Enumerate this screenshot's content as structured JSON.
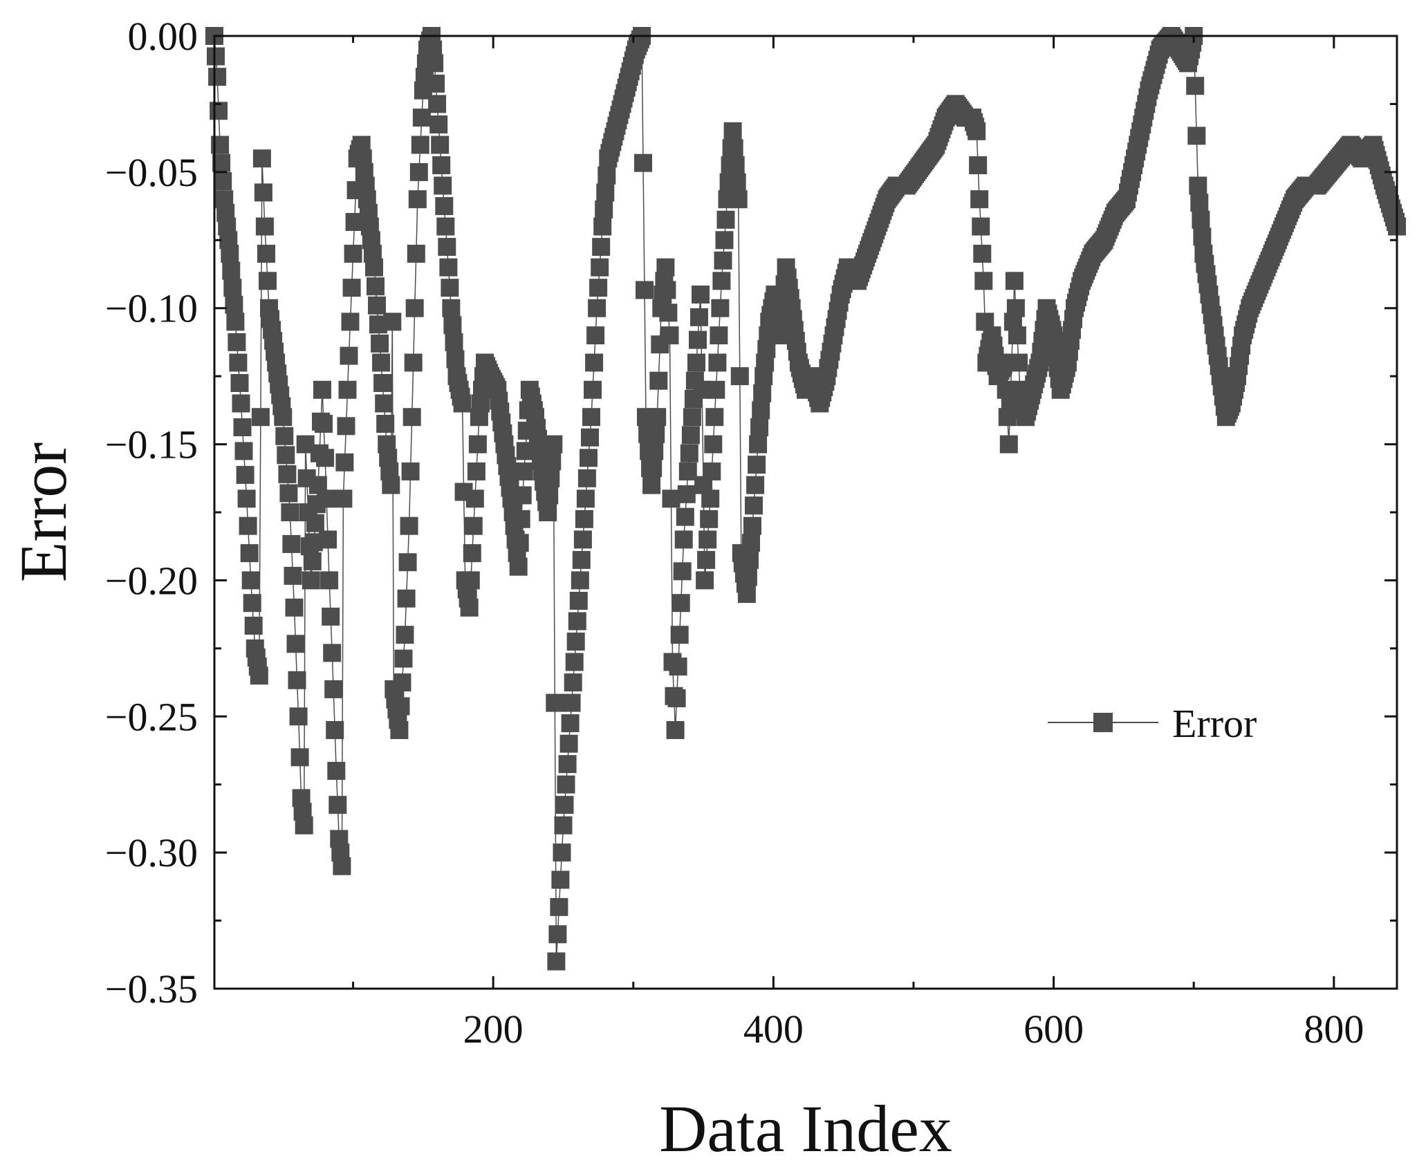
{
  "chart_data": {
    "type": "line",
    "xlabel": "Data Index",
    "ylabel": "Error",
    "xlim": [
      1,
      845
    ],
    "ylim": [
      -0.35,
      0.0
    ],
    "xticks": [
      200,
      400,
      600,
      800
    ],
    "xtick_labels": [
      "200",
      "400",
      "600",
      "800"
    ],
    "yticks": [
      0.0,
      -0.05,
      -0.1,
      -0.15,
      -0.2,
      -0.25,
      -0.3,
      -0.35
    ],
    "ytick_labels": [
      "0.00",
      "−0.05",
      "−0.10",
      "−0.15",
      "−0.20",
      "−0.25",
      "−0.30",
      "−0.35"
    ],
    "grid": false,
    "legend": {
      "position": "center-right",
      "entries": [
        "Error"
      ]
    },
    "series": [
      {
        "name": "Error",
        "color": "#4d4d4d",
        "marker": "square",
        "anchor_points": [
          [
            1,
            0.0
          ],
          [
            3,
            -0.015
          ],
          [
            5,
            -0.04
          ],
          [
            8,
            -0.06
          ],
          [
            12,
            -0.08
          ],
          [
            16,
            -0.105
          ],
          [
            20,
            -0.135
          ],
          [
            24,
            -0.17
          ],
          [
            27,
            -0.2
          ],
          [
            30,
            -0.225
          ],
          [
            33,
            -0.235
          ],
          [
            35,
            -0.045
          ],
          [
            37,
            -0.07
          ],
          [
            40,
            -0.1
          ],
          [
            45,
            -0.12
          ],
          [
            50,
            -0.14
          ],
          [
            55,
            -0.175
          ],
          [
            58,
            -0.21
          ],
          [
            61,
            -0.25
          ],
          [
            63,
            -0.28
          ],
          [
            65,
            -0.29
          ],
          [
            66,
            -0.15
          ],
          [
            70,
            -0.2
          ],
          [
            75,
            -0.165
          ],
          [
            78,
            -0.13
          ],
          [
            80,
            -0.155
          ],
          [
            83,
            -0.2
          ],
          [
            86,
            -0.24
          ],
          [
            88,
            -0.27
          ],
          [
            90,
            -0.295
          ],
          [
            92,
            -0.305
          ],
          [
            93,
            -0.17
          ],
          [
            96,
            -0.13
          ],
          [
            100,
            -0.08
          ],
          [
            103,
            -0.045
          ],
          [
            106,
            -0.04
          ],
          [
            110,
            -0.06
          ],
          [
            115,
            -0.085
          ],
          [
            120,
            -0.12
          ],
          [
            124,
            -0.15
          ],
          [
            127,
            -0.165
          ],
          [
            128,
            -0.105
          ],
          [
            129,
            -0.24
          ],
          [
            133,
            -0.255
          ],
          [
            137,
            -0.22
          ],
          [
            140,
            -0.18
          ],
          [
            143,
            -0.12
          ],
          [
            146,
            -0.06
          ],
          [
            150,
            -0.02
          ],
          [
            153,
            -0.005
          ],
          [
            156,
            0.0
          ],
          [
            158,
            -0.01
          ],
          [
            162,
            -0.04
          ],
          [
            166,
            -0.07
          ],
          [
            170,
            -0.1
          ],
          [
            174,
            -0.125
          ],
          [
            178,
            -0.135
          ],
          [
            180,
            -0.2
          ],
          [
            183,
            -0.21
          ],
          [
            187,
            -0.17
          ],
          [
            190,
            -0.14
          ],
          [
            194,
            -0.12
          ],
          [
            198,
            -0.125
          ],
          [
            203,
            -0.13
          ],
          [
            208,
            -0.15
          ],
          [
            213,
            -0.17
          ],
          [
            218,
            -0.195
          ],
          [
            222,
            -0.16
          ],
          [
            226,
            -0.13
          ],
          [
            230,
            -0.14
          ],
          [
            235,
            -0.16
          ],
          [
            239,
            -0.175
          ],
          [
            243,
            -0.15
          ],
          [
            245,
            -0.34
          ],
          [
            247,
            -0.32
          ],
          [
            250,
            -0.29
          ],
          [
            254,
            -0.26
          ],
          [
            258,
            -0.23
          ],
          [
            262,
            -0.2
          ],
          [
            266,
            -0.17
          ],
          [
            270,
            -0.14
          ],
          [
            274,
            -0.1
          ],
          [
            278,
            -0.07
          ],
          [
            282,
            -0.045
          ],
          [
            287,
            -0.035
          ],
          [
            292,
            -0.025
          ],
          [
            297,
            -0.015
          ],
          [
            302,
            -0.005
          ],
          [
            306,
            0.0
          ],
          [
            309,
            -0.14
          ],
          [
            313,
            -0.165
          ],
          [
            317,
            -0.14
          ],
          [
            320,
            -0.1
          ],
          [
            323,
            -0.085
          ],
          [
            326,
            -0.11
          ],
          [
            328,
            -0.23
          ],
          [
            330,
            -0.255
          ],
          [
            333,
            -0.22
          ],
          [
            336,
            -0.185
          ],
          [
            339,
            -0.16
          ],
          [
            342,
            -0.14
          ],
          [
            345,
            -0.12
          ],
          [
            348,
            -0.095
          ],
          [
            351,
            -0.2
          ],
          [
            355,
            -0.17
          ],
          [
            359,
            -0.13
          ],
          [
            363,
            -0.09
          ],
          [
            367,
            -0.06
          ],
          [
            371,
            -0.035
          ],
          [
            375,
            -0.06
          ],
          [
            377,
            -0.19
          ],
          [
            381,
            -0.205
          ],
          [
            385,
            -0.18
          ],
          [
            389,
            -0.15
          ],
          [
            393,
            -0.125
          ],
          [
            397,
            -0.105
          ],
          [
            401,
            -0.095
          ],
          [
            405,
            -0.11
          ],
          [
            409,
            -0.085
          ],
          [
            413,
            -0.1
          ],
          [
            418,
            -0.12
          ],
          [
            423,
            -0.13
          ],
          [
            428,
            -0.125
          ],
          [
            433,
            -0.135
          ],
          [
            438,
            -0.125
          ],
          [
            443,
            -0.11
          ],
          [
            448,
            -0.095
          ],
          [
            453,
            -0.085
          ],
          [
            460,
            -0.09
          ],
          [
            467,
            -0.08
          ],
          [
            474,
            -0.07
          ],
          [
            481,
            -0.06
          ],
          [
            488,
            -0.055
          ],
          [
            495,
            -0.055
          ],
          [
            502,
            -0.05
          ],
          [
            509,
            -0.045
          ],
          [
            516,
            -0.04
          ],
          [
            523,
            -0.03
          ],
          [
            530,
            -0.025
          ],
          [
            537,
            -0.03
          ],
          [
            542,
            -0.03
          ],
          [
            545,
            -0.035
          ],
          [
            547,
            -0.06
          ],
          [
            550,
            -0.09
          ],
          [
            552,
            -0.12
          ],
          [
            556,
            -0.11
          ],
          [
            560,
            -0.125
          ],
          [
            565,
            -0.12
          ],
          [
            568,
            -0.15
          ],
          [
            572,
            -0.09
          ],
          [
            576,
            -0.13
          ],
          [
            580,
            -0.14
          ],
          [
            585,
            -0.13
          ],
          [
            590,
            -0.12
          ],
          [
            595,
            -0.1
          ],
          [
            600,
            -0.11
          ],
          [
            605,
            -0.13
          ],
          [
            610,
            -0.12
          ],
          [
            615,
            -0.1
          ],
          [
            620,
            -0.09
          ],
          [
            628,
            -0.08
          ],
          [
            636,
            -0.075
          ],
          [
            644,
            -0.065
          ],
          [
            652,
            -0.06
          ],
          [
            660,
            -0.04
          ],
          [
            668,
            -0.02
          ],
          [
            676,
            -0.005
          ],
          [
            684,
            0.0
          ],
          [
            690,
            -0.005
          ],
          [
            696,
            -0.01
          ],
          [
            700,
            0.0
          ],
          [
            703,
            -0.055
          ],
          [
            707,
            -0.08
          ],
          [
            711,
            -0.095
          ],
          [
            715,
            -0.11
          ],
          [
            719,
            -0.125
          ],
          [
            723,
            -0.14
          ],
          [
            727,
            -0.135
          ],
          [
            731,
            -0.125
          ],
          [
            735,
            -0.11
          ],
          [
            740,
            -0.1
          ],
          [
            748,
            -0.09
          ],
          [
            756,
            -0.08
          ],
          [
            764,
            -0.07
          ],
          [
            772,
            -0.06
          ],
          [
            780,
            -0.055
          ],
          [
            788,
            -0.055
          ],
          [
            796,
            -0.05
          ],
          [
            804,
            -0.045
          ],
          [
            812,
            -0.04
          ],
          [
            820,
            -0.045
          ],
          [
            828,
            -0.04
          ],
          [
            836,
            -0.055
          ],
          [
            842,
            -0.065
          ],
          [
            845,
            -0.07
          ]
        ]
      }
    ]
  }
}
